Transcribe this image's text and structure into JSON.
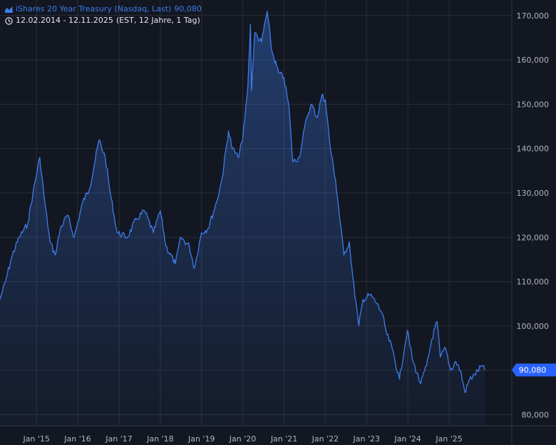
{
  "header": {
    "instrument": "iShares 20 Year Treasury (Nasdaq, Last)",
    "last_value": "90,080",
    "date_range": "12.02.2014 - 12.11.2025",
    "range_info": "(EST, 12 Jahre, 1 Tag)",
    "title_icon": "area-chart-icon",
    "range_icon": "clock-icon"
  },
  "colors": {
    "background": "#131722",
    "grid": "#2a2e39",
    "line": "#3d7ce8",
    "axis_text": "#b2b5be",
    "price_label_bg": "#2962ff"
  },
  "chart_data": {
    "type": "area",
    "title": "iShares 20 Year Treasury (Nasdaq, Last)",
    "xlabel": "",
    "ylabel": "",
    "x_range": [
      "2014-02-12",
      "2025-11-12"
    ],
    "ylim": [
      77500,
      173500
    ],
    "y_ticks": [
      80000,
      90000,
      100000,
      110000,
      120000,
      130000,
      140000,
      150000,
      160000,
      170000
    ],
    "y_tick_labels": [
      "80,000",
      "90,000",
      "100,000",
      "110,000",
      "120,000",
      "130,000",
      "140,000",
      "150,000",
      "160,000",
      "170,000"
    ],
    "x_ticks": [
      "2015-01-01",
      "2016-01-01",
      "2017-01-01",
      "2018-01-01",
      "2019-01-01",
      "2020-01-01",
      "2021-01-01",
      "2022-01-01",
      "2023-01-01",
      "2024-01-01",
      "2025-01-01"
    ],
    "x_tick_labels": [
      "Jan '15",
      "Jan '16",
      "Jan '17",
      "Jan '18",
      "Jan '19",
      "Jan '20",
      "Jan '21",
      "Jan '22",
      "Jan '23",
      "Jan '24",
      "Jan '25"
    ],
    "last_value_label": "90,080",
    "grid": true,
    "legend": "none",
    "series": [
      {
        "x": [
          "2014-02-12",
          "2014-04-01",
          "2014-06-01",
          "2014-08-01",
          "2014-10-15",
          "2014-12-01",
          "2015-01-30",
          "2015-03-15",
          "2015-05-01",
          "2015-06-15",
          "2015-08-01",
          "2015-10-01",
          "2015-12-01",
          "2016-02-15",
          "2016-04-15",
          "2016-07-08",
          "2016-09-01",
          "2016-10-15",
          "2016-12-15",
          "2017-03-15",
          "2017-06-01",
          "2017-08-15",
          "2017-11-01",
          "2018-01-01",
          "2018-02-20",
          "2018-05-15",
          "2018-07-01",
          "2018-09-15",
          "2018-10-30",
          "2018-12-31",
          "2019-03-01",
          "2019-05-15",
          "2019-06-30",
          "2019-08-28",
          "2019-10-01",
          "2019-11-20",
          "2019-12-31",
          "2020-02-15",
          "2020-03-09",
          "2020-03-18",
          "2020-04-15",
          "2020-06-15",
          "2020-08-04",
          "2020-09-15",
          "2020-11-15",
          "2020-12-31",
          "2021-02-15",
          "2021-03-18",
          "2021-05-15",
          "2021-07-20",
          "2021-09-01",
          "2021-10-20",
          "2021-12-01",
          "2022-01-01",
          "2022-02-15",
          "2022-04-01",
          "2022-06-14",
          "2022-08-01",
          "2022-09-01",
          "2022-10-24",
          "2022-12-01",
          "2023-02-01",
          "2023-04-05",
          "2023-05-15",
          "2023-07-01",
          "2023-08-15",
          "2023-10-19",
          "2023-12-27",
          "2024-02-15",
          "2024-04-25",
          "2024-06-15",
          "2024-08-01",
          "2024-09-16",
          "2024-10-15",
          "2024-12-01",
          "2025-01-13",
          "2025-03-01",
          "2025-04-10",
          "2025-05-21",
          "2025-07-01",
          "2025-08-15",
          "2025-10-15",
          "2025-11-12"
        ],
        "y": [
          106000,
          110000,
          116000,
          120000,
          123000,
          130000,
          138000,
          128000,
          119000,
          116000,
          122000,
          125000,
          120000,
          128000,
          131000,
          142000,
          138000,
          130000,
          121000,
          120000,
          124000,
          126000,
          121000,
          126000,
          118000,
          114000,
          120000,
          118000,
          113000,
          121000,
          122000,
          128000,
          133000,
          144000,
          140000,
          138000,
          142000,
          154000,
          168000,
          153000,
          166000,
          164000,
          171000,
          162000,
          157000,
          156000,
          149000,
          137000,
          138000,
          147000,
          150000,
          147000,
          152000,
          151000,
          140000,
          133000,
          116000,
          119000,
          111000,
          100000,
          106000,
          107000,
          105000,
          103000,
          98000,
          95000,
          88000,
          99000,
          92000,
          87000,
          91000,
          97000,
          101000,
          93000,
          95000,
          90000,
          92000,
          90000,
          85000,
          88000,
          89000,
          91000,
          90080
        ]
      }
    ]
  }
}
